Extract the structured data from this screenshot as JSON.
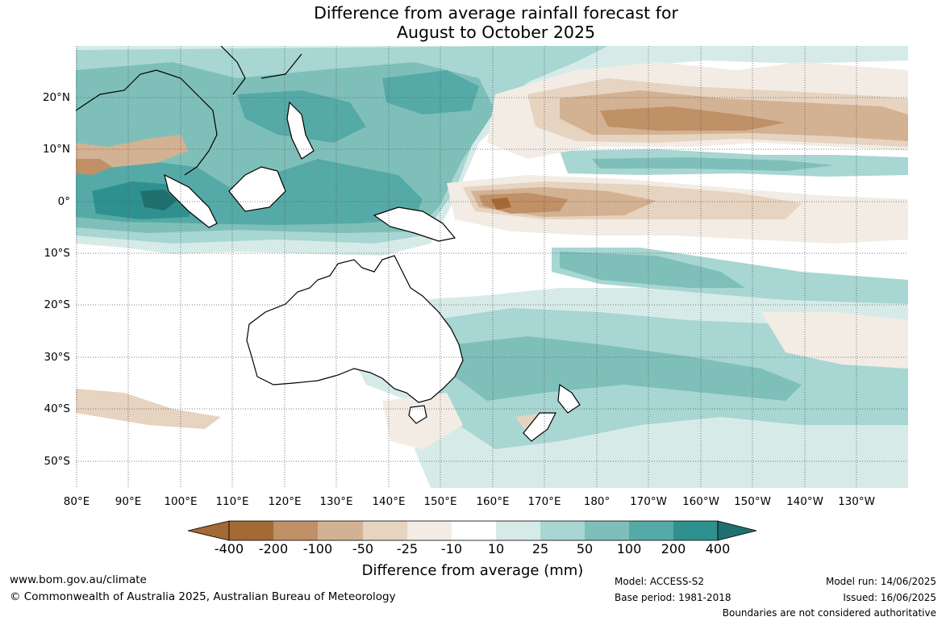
{
  "title_line1": "Difference from average rainfall forecast for",
  "title_line2": "August to October 2025",
  "colors": {
    "dry_400": "#a46a33",
    "dry_200": "#c09067",
    "dry_100": "#d3b293",
    "dry_50": "#e6d3c0",
    "dry_25": "#f2ece4",
    "neutral": "#ffffff",
    "wet_10": "#d6ebe8",
    "wet_25": "#a8d6d2",
    "wet_50": "#7fbfba",
    "wet_100": "#55aaa7",
    "wet_200": "#2f918f",
    "wet_400": "#1f706e"
  },
  "lat_labels": [
    "20°N",
    "10°N",
    "0°",
    "10°S",
    "20°S",
    "30°S",
    "40°S",
    "50°S"
  ],
  "lon_labels": [
    "80°E",
    "90°E",
    "100°E",
    "110°E",
    "120°E",
    "130°E",
    "140°E",
    "150°E",
    "160°E",
    "170°E",
    "180°",
    "170°W",
    "160°W",
    "150°W",
    "140°W",
    "130°W"
  ],
  "colorbar": {
    "tick_labels": [
      "-400",
      "-200",
      "-100",
      "-50",
      "-25",
      "-10",
      "10",
      "25",
      "50",
      "100",
      "200",
      "400"
    ],
    "title": "Difference from average (mm)"
  },
  "footer": {
    "website": "www.bom.gov.au/climate",
    "copyright": "© Commonwealth of Australia 2025, Australian Bureau of Meteorology",
    "model": "Model: ACCESS-S2",
    "base_period": "Base period: 1981-2018",
    "model_run": "Model run: 14/06/2025",
    "issued": "Issued: 16/06/2025",
    "boundaries": "Boundaries are not considered authoritative"
  }
}
